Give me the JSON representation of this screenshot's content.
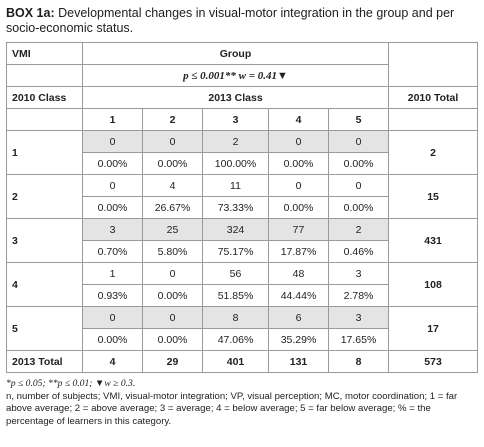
{
  "box": {
    "label": "BOX 1a:",
    "title": "Developmental changes in visual-motor integration in the group and per socio-economic status."
  },
  "table": {
    "vmi": "VMI",
    "group": "Group",
    "stats": "p ≤ 0.001** w = 0.41▼",
    "class_2010": "2010 Class",
    "class_2013": "2013 Class",
    "total_2010": "2010 Total",
    "cols": [
      "1",
      "2",
      "3",
      "4",
      "5"
    ],
    "rows": [
      {
        "label": "1",
        "counts": [
          "0",
          "0",
          "2",
          "0",
          "0"
        ],
        "pcts": [
          "0.00%",
          "0.00%",
          "100.00%",
          "0.00%",
          "0.00%"
        ],
        "total": "2",
        "shaded": true
      },
      {
        "label": "2",
        "counts": [
          "0",
          "4",
          "11",
          "0",
          "0"
        ],
        "pcts": [
          "0.00%",
          "26.67%",
          "73.33%",
          "0.00%",
          "0.00%"
        ],
        "total": "15",
        "shaded": false
      },
      {
        "label": "3",
        "counts": [
          "3",
          "25",
          "324",
          "77",
          "2"
        ],
        "pcts": [
          "0.70%",
          "5.80%",
          "75.17%",
          "17.87%",
          "0.46%"
        ],
        "total": "431",
        "shaded": true
      },
      {
        "label": "4",
        "counts": [
          "1",
          "0",
          "56",
          "48",
          "3"
        ],
        "pcts": [
          "0.93%",
          "0.00%",
          "51.85%",
          "44.44%",
          "2.78%"
        ],
        "total": "108",
        "shaded": false
      },
      {
        "label": "5",
        "counts": [
          "0",
          "0",
          "8",
          "6",
          "3"
        ],
        "pcts": [
          "0.00%",
          "0.00%",
          "47.06%",
          "35.29%",
          "17.65%"
        ],
        "total": "17",
        "shaded": true
      }
    ],
    "total_row": {
      "label": "2013 Total",
      "values": [
        "4",
        "29",
        "401",
        "131",
        "8"
      ],
      "total": "573"
    }
  },
  "notes": {
    "significance": "*p ≤ 0.05; **p ≤ 0.01; ▼w ≥ 0.3.",
    "abbreviations": "n, number of subjects; VMI, visual-motor integration; VP, visual perception; MC, motor coordination; 1 = far above average; 2 = above average; 3 = average; 4 = below average; 5 = far below average; % = the percentage of learners in this category."
  }
}
